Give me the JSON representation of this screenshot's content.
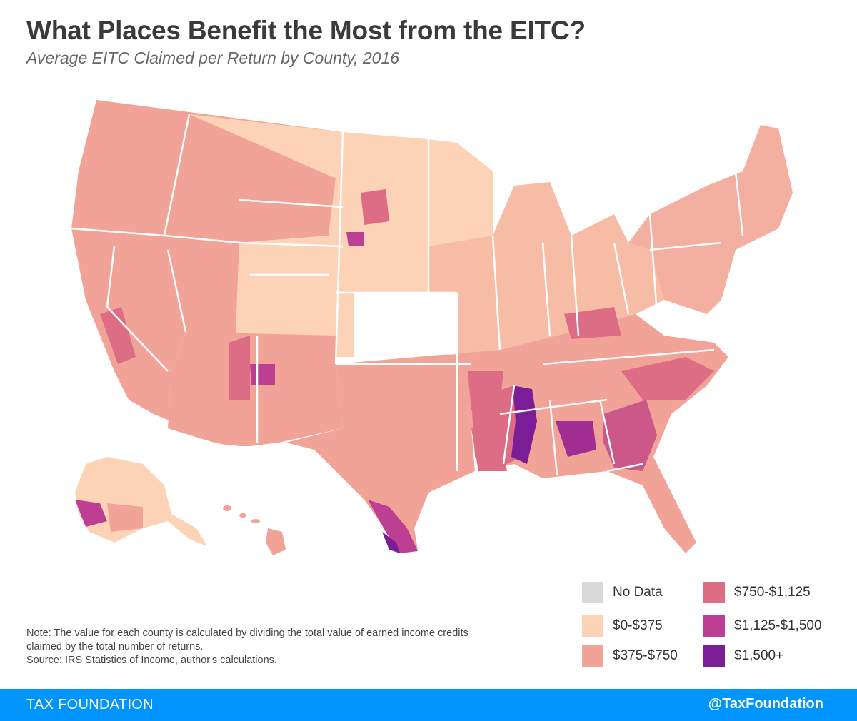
{
  "header": {
    "title": "What Places Benefit the Most from the EITC?",
    "subtitle": "Average EITC Claimed per Return by County, 2016"
  },
  "legend": [
    {
      "label": "No Data",
      "color": "#d9d9d9"
    },
    {
      "label": "$0-$375",
      "color": "#fdd3b8"
    },
    {
      "label": "$375-$750",
      "color": "#f1a397"
    },
    {
      "label": "$750-$1,125",
      "color": "#dc6d85"
    },
    {
      "label": "$1,125-$1,500",
      "color": "#bc3f93"
    },
    {
      "label": "$1,500+",
      "color": "#7a1d96"
    }
  ],
  "note": {
    "line1": "Note: The value for each county is calculated by dividing the total value of earned income credits claimed by the total number of returns.",
    "source": "Source: IRS Statistics of Income, author's calculations."
  },
  "footer": {
    "brand": "TAX FOUNDATION",
    "handle": "@TaxFoundation"
  },
  "map": {
    "regions": [
      {
        "name": "us-west",
        "color": "#f1a397"
      },
      {
        "name": "us-mountain-north",
        "color": "#fdd3b8"
      },
      {
        "name": "us-plains",
        "color": "#fdd3b8"
      },
      {
        "name": "us-south",
        "color": "#f1a397"
      },
      {
        "name": "us-northeast",
        "color": "#f1a397"
      }
    ],
    "hotspots": [
      {
        "name": "mississippi-delta",
        "color": "#7a1d96"
      },
      {
        "name": "alabama-black-belt",
        "color": "#7a1d96"
      },
      {
        "name": "south-texas-border",
        "color": "#bc3f93"
      },
      {
        "name": "georgia-coastal-plain",
        "color": "#dc6d85"
      },
      {
        "name": "south-dakota-reservations",
        "color": "#bc3f93"
      },
      {
        "name": "southwest-alaska",
        "color": "#bc3f93"
      }
    ]
  }
}
